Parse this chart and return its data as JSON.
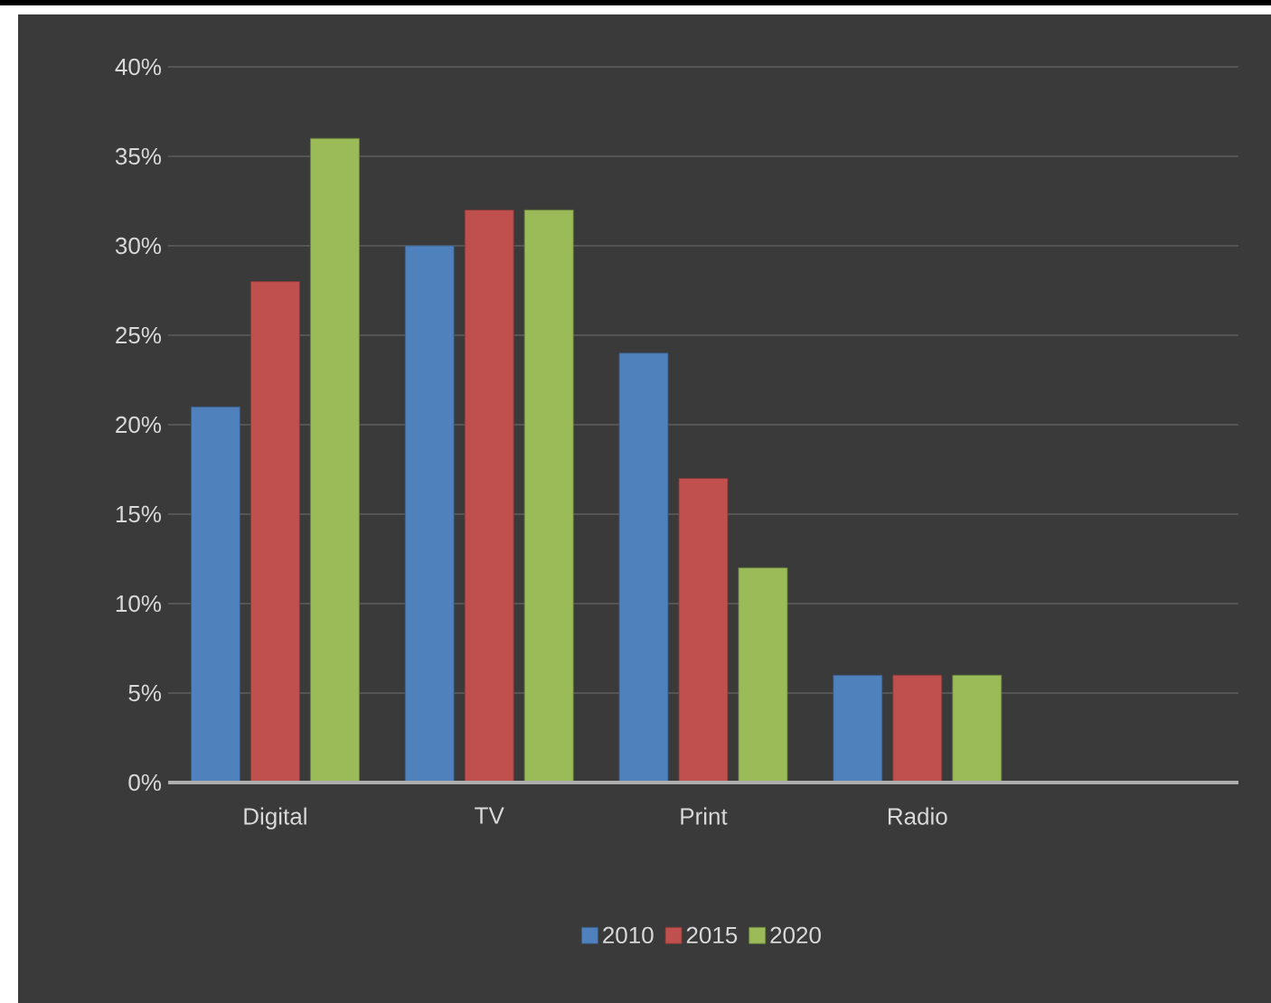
{
  "chart_data": {
    "type": "bar",
    "categories": [
      "Digital",
      "TV",
      "Print",
      "Radio"
    ],
    "series": [
      {
        "name": "2010",
        "color": "#4f81bd",
        "values": [
          21,
          30,
          24,
          6
        ]
      },
      {
        "name": "2015",
        "color": "#c0504d",
        "values": [
          28,
          32,
          17,
          6
        ]
      },
      {
        "name": "2020",
        "color": "#9bbb59",
        "values": [
          36,
          32,
          12,
          6
        ]
      }
    ],
    "ylim": [
      0,
      40
    ],
    "yticks": [
      {
        "value": 0,
        "label": "0%"
      },
      {
        "value": 5,
        "label": "5%"
      },
      {
        "value": 10,
        "label": "10%"
      },
      {
        "value": 15,
        "label": "15%"
      },
      {
        "value": 20,
        "label": "20%"
      },
      {
        "value": 25,
        "label": "25%"
      },
      {
        "value": 30,
        "label": "30%"
      },
      {
        "value": 35,
        "label": "35%"
      },
      {
        "value": 40,
        "label": "40%"
      }
    ],
    "grid": "y",
    "legend": "bottom"
  }
}
